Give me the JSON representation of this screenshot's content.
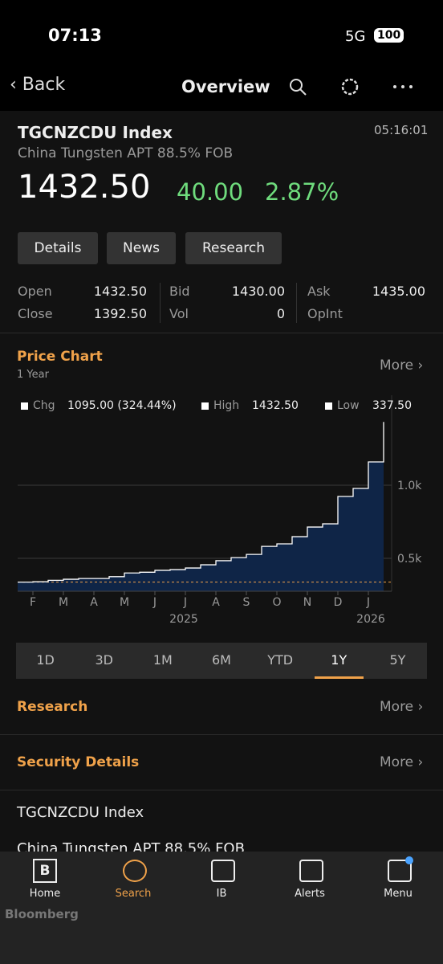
{
  "status_bar": {
    "time": "07:13",
    "network": "5G",
    "battery": "100"
  },
  "nav": {
    "back": "Back",
    "title": "Overview"
  },
  "header": {
    "ticker": "TGCNZCDU Index",
    "name": "China Tungsten APT 88.5% FOB",
    "time": "05:16:01",
    "price": "1432.50",
    "change": "40.00",
    "change_pct": "2.87%"
  },
  "buttons": [
    "Details",
    "News",
    "Research"
  ],
  "quote": {
    "rows": [
      [
        {
          "label": "Open",
          "value": "1432.50"
        },
        {
          "label": "Bid",
          "value": "1430.00"
        },
        {
          "label": "Ask",
          "value": "1435.00"
        }
      ],
      [
        {
          "label": "Close",
          "value": "1392.50"
        },
        {
          "label": "Vol",
          "value": "0"
        },
        {
          "label": "OpInt"
        }
      ]
    ]
  },
  "price_chart": {
    "title": "Price Chart",
    "period": "1 Year",
    "more": "More"
  },
  "chart_data": {
    "type": "area",
    "legend_stats": [
      {
        "name": "Chg",
        "value": "1095.00 (324.44%)"
      },
      {
        "name": "High",
        "value": "1432.50"
      },
      {
        "name": "Low",
        "value": "337.50"
      }
    ],
    "categories": [
      null,
      "F",
      null,
      "M",
      null,
      "A",
      null,
      "M",
      null,
      "J",
      null,
      "J",
      null,
      "A",
      null,
      "S",
      null,
      "O",
      null,
      "N",
      null,
      "D",
      null,
      "J",
      null
    ],
    "values": [
      337.5,
      340,
      350,
      357,
      362,
      362,
      375,
      400,
      405,
      418,
      423,
      434,
      456,
      484,
      505,
      527,
      582,
      599,
      648,
      714,
      736,
      923,
      978,
      1159,
      1432.5
    ],
    "x_years": [
      "2025",
      "2026"
    ],
    "color": "#ffffff",
    "fill": "#0f2547",
    "low_line_color": "#f0a24a",
    "ylim": [
      275,
      1615
    ],
    "yticks": [
      {
        "value": 500,
        "label": "0.5k"
      },
      {
        "value": 1000,
        "label": "1.0k"
      }
    ],
    "grid": true
  },
  "ranges": {
    "options": [
      "1D",
      "3D",
      "1M",
      "6M",
      "YTD",
      "1Y",
      "5Y"
    ],
    "selected": 5
  },
  "sections": [
    {
      "title": "Research",
      "more": "More"
    },
    {
      "title": "Security Details",
      "more": "More"
    }
  ],
  "details": {
    "ticker": "TGCNZCDU Index",
    "name": "China Tungsten APT 88.5% FOB"
  },
  "tab_bar": {
    "home_icon": "B",
    "tabs": [
      "Home",
      "Search",
      "IB",
      "Alerts",
      "Menu"
    ],
    "active": 1
  },
  "brand": "Bloomberg"
}
